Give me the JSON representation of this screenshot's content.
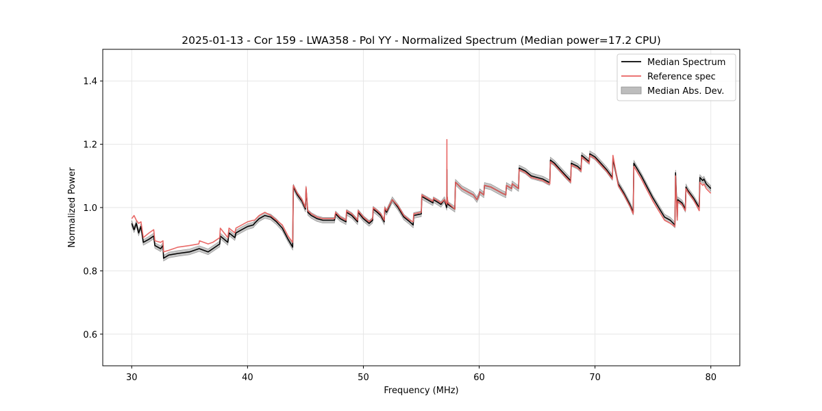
{
  "chart_data": {
    "type": "line",
    "title": "2025-01-13 - Cor 159 - LWA358 - Pol YY - Normalized Spectrum (Median power=17.2 CPU)",
    "xlabel": "Frequency (MHz)",
    "ylabel": "Normalized Power",
    "xlim": [
      27.5,
      82.5
    ],
    "ylim": [
      0.5,
      1.5
    ],
    "xticks": [
      30,
      40,
      50,
      60,
      70,
      80
    ],
    "yticks": [
      0.6,
      0.8,
      1.0,
      1.2,
      1.4
    ],
    "grid": true,
    "legend_position": "top-right",
    "colors": {
      "median": "#000000",
      "reference": "#e8615f",
      "mad_fill": "#bdbdbd",
      "mad_edge": "#8c8c8c",
      "grid": "#e6e6e6"
    },
    "mad_halfwidth": 0.009,
    "series": [
      {
        "name": "Median Spectrum",
        "x": [
          30.0,
          30.2,
          30.4,
          30.6,
          30.8,
          31.0,
          31.5,
          31.9,
          32.0,
          32.5,
          32.7,
          32.75,
          33.2,
          34.0,
          35.0,
          35.8,
          35.85,
          36.6,
          37.0,
          37.6,
          37.65,
          38.3,
          38.4,
          38.9,
          39.0,
          39.5,
          40.0,
          40.5,
          40.6,
          41.0,
          41.5,
          42.0,
          42.5,
          43.0,
          43.5,
          43.9,
          43.95,
          44.3,
          44.7,
          45.0,
          45.05,
          45.2,
          45.5,
          46.0,
          46.5,
          47.0,
          47.5,
          47.6,
          48.0,
          48.5,
          48.55,
          49.0,
          49.5,
          49.55,
          50.0,
          50.5,
          50.8,
          50.85,
          51.2,
          51.5,
          51.8,
          51.85,
          52.0,
          52.5,
          53.0,
          53.5,
          54.0,
          54.3,
          54.35,
          55.0,
          55.05,
          56.0,
          56.05,
          56.5,
          56.7,
          57.0,
          57.2,
          57.21,
          57.22,
          57.3,
          57.9,
          57.95,
          58.5,
          59.0,
          59.5,
          59.8,
          60.0,
          60.05,
          60.4,
          60.45,
          61.0,
          61.5,
          62.0,
          62.3,
          62.35,
          62.8,
          62.85,
          63.4,
          63.45,
          64.0,
          64.5,
          65.0,
          65.5,
          66.0,
          66.1,
          66.15,
          66.5,
          67.0,
          67.5,
          67.9,
          67.95,
          68.5,
          68.8,
          68.85,
          69.5,
          69.55,
          70.0,
          70.5,
          71.0,
          71.5,
          71.55,
          72.0,
          72.5,
          73.0,
          73.3,
          73.35,
          74.0,
          74.5,
          75.0,
          75.5,
          76.0,
          76.5,
          76.9,
          76.95,
          77.1,
          77.15,
          77.5,
          77.8,
          77.85,
          78.0,
          78.5,
          79.0,
          79.05,
          79.3,
          79.4,
          79.6,
          80.0
        ],
        "values": [
          0.95,
          0.93,
          0.95,
          0.92,
          0.94,
          0.89,
          0.9,
          0.91,
          0.88,
          0.87,
          0.88,
          0.84,
          0.85,
          0.855,
          0.86,
          0.87,
          0.87,
          0.86,
          0.87,
          0.885,
          0.91,
          0.89,
          0.92,
          0.905,
          0.92,
          0.93,
          0.94,
          0.945,
          0.95,
          0.965,
          0.975,
          0.97,
          0.955,
          0.935,
          0.9,
          0.875,
          1.065,
          1.04,
          1.02,
          0.995,
          1.06,
          0.985,
          0.975,
          0.965,
          0.96,
          0.96,
          0.96,
          0.98,
          0.965,
          0.955,
          0.985,
          0.975,
          0.955,
          0.985,
          0.965,
          0.95,
          0.96,
          0.995,
          0.985,
          0.975,
          0.955,
          0.995,
          0.985,
          1.025,
          1.0,
          0.97,
          0.955,
          0.945,
          0.975,
          0.98,
          1.035,
          1.015,
          1.025,
          1.015,
          1.01,
          1.025,
          1.0,
          1.12,
          1.04,
          1.01,
          0.995,
          1.08,
          1.06,
          1.05,
          1.04,
          1.025,
          1.04,
          1.05,
          1.04,
          1.07,
          1.065,
          1.055,
          1.045,
          1.04,
          1.07,
          1.06,
          1.075,
          1.06,
          1.125,
          1.115,
          1.1,
          1.095,
          1.09,
          1.08,
          1.08,
          1.15,
          1.14,
          1.12,
          1.1,
          1.085,
          1.14,
          1.13,
          1.12,
          1.165,
          1.145,
          1.17,
          1.16,
          1.14,
          1.12,
          1.095,
          1.155,
          1.075,
          1.045,
          1.01,
          0.985,
          1.14,
          1.1,
          1.065,
          1.03,
          1.0,
          0.97,
          0.96,
          0.945,
          1.11,
          0.97,
          1.025,
          1.015,
          0.995,
          1.065,
          1.055,
          1.03,
          1.0,
          1.095,
          1.085,
          1.09,
          1.075,
          1.06
        ]
      },
      {
        "name": "Reference spec",
        "x": [
          30.0,
          30.2,
          30.4,
          30.6,
          30.8,
          31.0,
          31.5,
          31.9,
          32.0,
          32.5,
          32.7,
          32.75,
          33.2,
          34.0,
          35.0,
          35.8,
          35.85,
          36.6,
          37.0,
          37.6,
          37.65,
          38.3,
          38.4,
          38.9,
          39.0,
          39.5,
          40.0,
          40.5,
          40.6,
          41.0,
          41.5,
          42.0,
          42.5,
          43.0,
          43.5,
          43.9,
          43.95,
          44.3,
          44.7,
          45.0,
          45.05,
          45.2,
          45.5,
          46.0,
          46.5,
          47.0,
          47.5,
          47.6,
          48.0,
          48.5,
          48.55,
          49.0,
          49.5,
          49.55,
          50.0,
          50.5,
          50.8,
          50.85,
          51.2,
          51.5,
          51.8,
          51.85,
          52.0,
          52.5,
          53.0,
          53.5,
          54.0,
          54.3,
          54.35,
          55.0,
          55.05,
          56.0,
          56.05,
          56.5,
          56.7,
          57.0,
          57.2,
          57.21,
          57.22,
          57.3,
          57.9,
          57.95,
          58.5,
          59.0,
          59.5,
          59.8,
          60.0,
          60.05,
          60.4,
          60.45,
          61.0,
          61.5,
          62.0,
          62.3,
          62.35,
          62.8,
          62.85,
          63.4,
          63.45,
          64.0,
          64.5,
          65.0,
          65.5,
          66.0,
          66.1,
          66.15,
          66.5,
          67.0,
          67.5,
          67.9,
          67.95,
          68.5,
          68.8,
          68.85,
          69.5,
          69.55,
          70.0,
          70.5,
          71.0,
          71.5,
          71.55,
          72.0,
          72.5,
          73.0,
          73.3,
          73.35,
          74.0,
          74.5,
          75.0,
          75.5,
          76.0,
          76.5,
          76.9,
          76.95,
          77.1,
          77.15,
          77.5,
          77.8,
          77.85,
          78.0,
          78.5,
          79.0,
          79.05,
          79.3,
          79.4,
          79.6,
          80.0
        ],
        "values": [
          0.965,
          0.975,
          0.96,
          0.95,
          0.955,
          0.905,
          0.92,
          0.93,
          0.895,
          0.89,
          0.895,
          0.86,
          0.865,
          0.875,
          0.88,
          0.885,
          0.895,
          0.885,
          0.89,
          0.905,
          0.935,
          0.905,
          0.935,
          0.92,
          0.935,
          0.945,
          0.955,
          0.96,
          0.96,
          0.975,
          0.985,
          0.975,
          0.96,
          0.945,
          0.91,
          0.89,
          1.07,
          1.045,
          1.025,
          1.0,
          1.065,
          0.99,
          0.98,
          0.97,
          0.965,
          0.965,
          0.965,
          0.985,
          0.97,
          0.96,
          0.99,
          0.98,
          0.96,
          0.99,
          0.97,
          0.955,
          0.965,
          1.0,
          0.99,
          0.98,
          0.96,
          1.0,
          0.99,
          1.025,
          1.005,
          0.975,
          0.96,
          0.955,
          0.98,
          0.985,
          1.04,
          1.02,
          1.03,
          1.02,
          1.015,
          1.025,
          1.01,
          1.215,
          1.04,
          1.015,
          0.995,
          1.08,
          1.06,
          1.05,
          1.04,
          1.025,
          1.04,
          1.05,
          1.04,
          1.07,
          1.065,
          1.055,
          1.045,
          1.04,
          1.07,
          1.06,
          1.075,
          1.06,
          1.12,
          1.11,
          1.095,
          1.09,
          1.085,
          1.075,
          1.075,
          1.145,
          1.135,
          1.115,
          1.095,
          1.08,
          1.135,
          1.125,
          1.115,
          1.16,
          1.14,
          1.165,
          1.155,
          1.135,
          1.115,
          1.09,
          1.165,
          1.07,
          1.04,
          1.005,
          0.98,
          1.13,
          1.09,
          1.055,
          1.02,
          0.99,
          0.96,
          0.95,
          0.94,
          1.1,
          0.96,
          1.02,
          1.01,
          0.99,
          1.06,
          1.05,
          1.025,
          0.99,
          1.08,
          1.07,
          1.075,
          1.06,
          1.045
        ]
      }
    ],
    "legend": [
      "Median Spectrum",
      "Reference spec",
      "Median Abs. Dev."
    ]
  }
}
